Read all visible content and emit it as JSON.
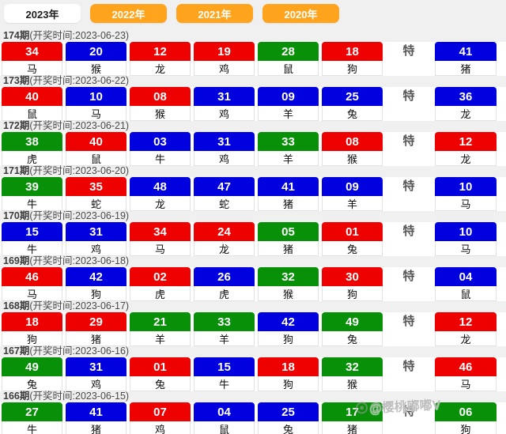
{
  "tabs": [
    {
      "label": "2023年",
      "active": true
    },
    {
      "label": "2022年",
      "active": false
    },
    {
      "label": "2021年",
      "active": false
    },
    {
      "label": "2020年",
      "active": false
    }
  ],
  "special_label": "特",
  "colors": {
    "red": "#ee0101",
    "blue": "#0101e0",
    "green": "#089108",
    "tab_orange": "#ffa41c",
    "active_tab_bg": "#ffffff"
  },
  "watermark": {
    "text": "@樱桃嘟嘟V",
    "icon": "weibo-eye-icon"
  },
  "rows": [
    {
      "period": "174期",
      "draw_info": "(开奖时间:2023-06-23)",
      "numbers": [
        {
          "num": "34",
          "color": "red",
          "zodiac": "马"
        },
        {
          "num": "20",
          "color": "blue",
          "zodiac": "猴"
        },
        {
          "num": "12",
          "color": "red",
          "zodiac": "龙"
        },
        {
          "num": "19",
          "color": "red",
          "zodiac": "鸡"
        },
        {
          "num": "28",
          "color": "green",
          "zodiac": "鼠"
        },
        {
          "num": "18",
          "color": "red",
          "zodiac": "狗"
        }
      ],
      "special": {
        "num": "41",
        "color": "blue",
        "zodiac": "猪"
      }
    },
    {
      "period": "173期",
      "draw_info": "(开奖时间:2023-06-22)",
      "numbers": [
        {
          "num": "40",
          "color": "red",
          "zodiac": "鼠"
        },
        {
          "num": "10",
          "color": "blue",
          "zodiac": "马"
        },
        {
          "num": "08",
          "color": "red",
          "zodiac": "猴"
        },
        {
          "num": "31",
          "color": "blue",
          "zodiac": "鸡"
        },
        {
          "num": "09",
          "color": "blue",
          "zodiac": "羊"
        },
        {
          "num": "25",
          "color": "blue",
          "zodiac": "兔"
        }
      ],
      "special": {
        "num": "36",
        "color": "blue",
        "zodiac": "龙"
      }
    },
    {
      "period": "172期",
      "draw_info": "(开奖时间:2023-06-21)",
      "numbers": [
        {
          "num": "38",
          "color": "green",
          "zodiac": "虎"
        },
        {
          "num": "40",
          "color": "red",
          "zodiac": "鼠"
        },
        {
          "num": "03",
          "color": "blue",
          "zodiac": "牛"
        },
        {
          "num": "31",
          "color": "blue",
          "zodiac": "鸡"
        },
        {
          "num": "33",
          "color": "green",
          "zodiac": "羊"
        },
        {
          "num": "08",
          "color": "red",
          "zodiac": "猴"
        }
      ],
      "special": {
        "num": "12",
        "color": "red",
        "zodiac": "龙"
      }
    },
    {
      "period": "171期",
      "draw_info": "(开奖时间:2023-06-20)",
      "numbers": [
        {
          "num": "39",
          "color": "green",
          "zodiac": "牛"
        },
        {
          "num": "35",
          "color": "red",
          "zodiac": "蛇"
        },
        {
          "num": "48",
          "color": "blue",
          "zodiac": "龙"
        },
        {
          "num": "47",
          "color": "blue",
          "zodiac": "蛇"
        },
        {
          "num": "41",
          "color": "blue",
          "zodiac": "猪"
        },
        {
          "num": "09",
          "color": "blue",
          "zodiac": "羊"
        }
      ],
      "special": {
        "num": "10",
        "color": "blue",
        "zodiac": "马"
      }
    },
    {
      "period": "170期",
      "draw_info": "(开奖时间:2023-06-19)",
      "numbers": [
        {
          "num": "15",
          "color": "blue",
          "zodiac": "牛"
        },
        {
          "num": "31",
          "color": "blue",
          "zodiac": "鸡"
        },
        {
          "num": "34",
          "color": "red",
          "zodiac": "马"
        },
        {
          "num": "24",
          "color": "red",
          "zodiac": "龙"
        },
        {
          "num": "05",
          "color": "green",
          "zodiac": "猪"
        },
        {
          "num": "01",
          "color": "red",
          "zodiac": "兔"
        }
      ],
      "special": {
        "num": "10",
        "color": "blue",
        "zodiac": "马"
      }
    },
    {
      "period": "169期",
      "draw_info": "(开奖时间:2023-06-18)",
      "numbers": [
        {
          "num": "46",
          "color": "red",
          "zodiac": "马"
        },
        {
          "num": "42",
          "color": "blue",
          "zodiac": "狗"
        },
        {
          "num": "02",
          "color": "red",
          "zodiac": "虎"
        },
        {
          "num": "26",
          "color": "blue",
          "zodiac": "虎"
        },
        {
          "num": "32",
          "color": "green",
          "zodiac": "猴"
        },
        {
          "num": "30",
          "color": "red",
          "zodiac": "狗"
        }
      ],
      "special": {
        "num": "04",
        "color": "blue",
        "zodiac": "鼠"
      }
    },
    {
      "period": "168期",
      "draw_info": "(开奖时间:2023-06-17)",
      "numbers": [
        {
          "num": "18",
          "color": "red",
          "zodiac": "狗"
        },
        {
          "num": "29",
          "color": "red",
          "zodiac": "猪"
        },
        {
          "num": "21",
          "color": "green",
          "zodiac": "羊"
        },
        {
          "num": "33",
          "color": "green",
          "zodiac": "羊"
        },
        {
          "num": "42",
          "color": "blue",
          "zodiac": "狗"
        },
        {
          "num": "49",
          "color": "green",
          "zodiac": "兔"
        }
      ],
      "special": {
        "num": "12",
        "color": "red",
        "zodiac": "龙"
      }
    },
    {
      "period": "167期",
      "draw_info": "(开奖时间:2023-06-16)",
      "numbers": [
        {
          "num": "49",
          "color": "green",
          "zodiac": "兔"
        },
        {
          "num": "31",
          "color": "blue",
          "zodiac": "鸡"
        },
        {
          "num": "01",
          "color": "red",
          "zodiac": "兔"
        },
        {
          "num": "15",
          "color": "blue",
          "zodiac": "牛"
        },
        {
          "num": "18",
          "color": "red",
          "zodiac": "狗"
        },
        {
          "num": "32",
          "color": "green",
          "zodiac": "猴"
        }
      ],
      "special": {
        "num": "46",
        "color": "red",
        "zodiac": "马"
      }
    },
    {
      "period": "166期",
      "draw_info": "(开奖时间:2023-06-15)",
      "numbers": [
        {
          "num": "27",
          "color": "green",
          "zodiac": "牛"
        },
        {
          "num": "41",
          "color": "blue",
          "zodiac": "猪"
        },
        {
          "num": "07",
          "color": "red",
          "zodiac": "鸡"
        },
        {
          "num": "04",
          "color": "blue",
          "zodiac": "鼠"
        },
        {
          "num": "25",
          "color": "blue",
          "zodiac": "兔"
        },
        {
          "num": "17",
          "color": "green",
          "zodiac": "猪"
        }
      ],
      "special": {
        "num": "06",
        "color": "green",
        "zodiac": "狗"
      }
    }
  ]
}
